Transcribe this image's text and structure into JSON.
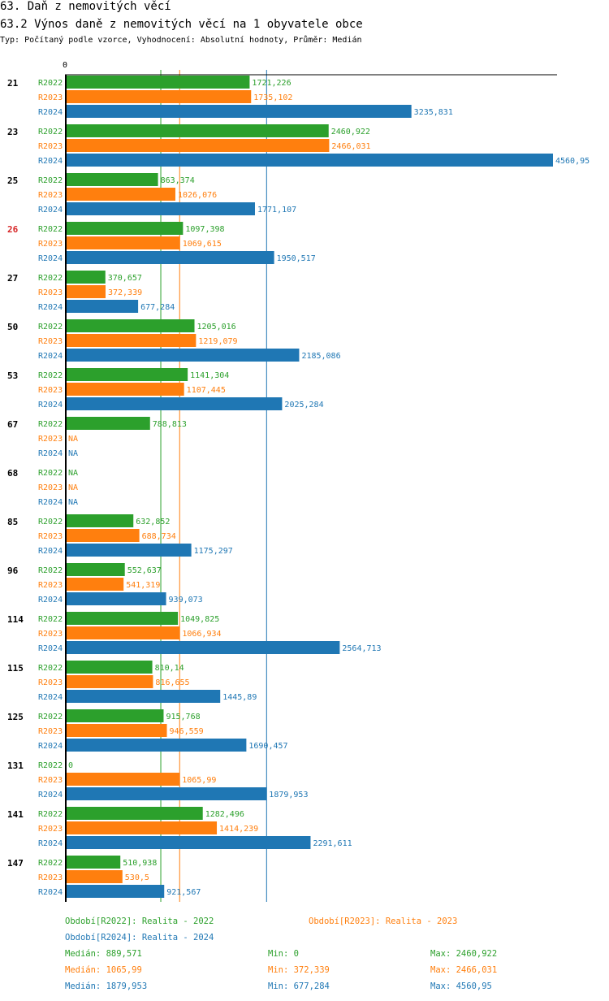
{
  "header": {
    "title": "63. Daň z nemovitých věcí",
    "subtitle": "63.2 Výnos daně z nemovitých věcí na 1 obyvatele obce",
    "meta": "Typ: Počítaný podle vzorce, Vyhodnocení: Absolutní hodnoty, Průměr: Medián"
  },
  "colors": {
    "R2022": "#2ca02c",
    "R2023": "#ff7f0e",
    "R2024": "#1f77b4",
    "highlight": "#d62728"
  },
  "chart_data": {
    "type": "bar",
    "orientation": "horizontal",
    "x_tick_label": "0",
    "xlim": [
      0,
      4560.95
    ],
    "series_names": [
      "R2022",
      "R2023",
      "R2024"
    ],
    "highlighted_group": "26",
    "groups": [
      {
        "id": "21",
        "values": [
          "1721,226",
          "1735,102",
          "3235,831"
        ]
      },
      {
        "id": "23",
        "values": [
          "2460,922",
          "2466,031",
          "4560,95"
        ]
      },
      {
        "id": "25",
        "values": [
          "863,374",
          "1026,076",
          "1771,107"
        ]
      },
      {
        "id": "26",
        "values": [
          "1097,398",
          "1069,615",
          "1950,517"
        ]
      },
      {
        "id": "27",
        "values": [
          "370,657",
          "372,339",
          "677,284"
        ]
      },
      {
        "id": "50",
        "values": [
          "1205,016",
          "1219,079",
          "2185,086"
        ]
      },
      {
        "id": "53",
        "values": [
          "1141,304",
          "1107,445",
          "2025,284"
        ]
      },
      {
        "id": "67",
        "values": [
          "788,813",
          "NA",
          "NA"
        ]
      },
      {
        "id": "68",
        "values": [
          "NA",
          "NA",
          "NA"
        ]
      },
      {
        "id": "85",
        "values": [
          "632,852",
          "688,734",
          "1175,297"
        ]
      },
      {
        "id": "96",
        "values": [
          "552,637",
          "541,319",
          "939,073"
        ]
      },
      {
        "id": "114",
        "values": [
          "1049,825",
          "1066,934",
          "2564,713"
        ]
      },
      {
        "id": "115",
        "values": [
          "810,14",
          "816,655",
          "1445,89"
        ]
      },
      {
        "id": "125",
        "values": [
          "915,768",
          "946,559",
          "1690,457"
        ]
      },
      {
        "id": "131",
        "values": [
          "0",
          "1065,99",
          "1879,953"
        ]
      },
      {
        "id": "141",
        "values": [
          "1282,496",
          "1414,239",
          "2291,611"
        ]
      },
      {
        "id": "147",
        "values": [
          "510,938",
          "530,5",
          "921,567"
        ]
      }
    ],
    "medians": [
      889.571,
      1065.99,
      1879.953
    ]
  },
  "legend": {
    "r2022": "Období[R2022]: Realita - 2022",
    "r2023": "Období[R2023]: Realita - 2023",
    "r2024": "Období[R2024]: Realita - 2024"
  },
  "stats": [
    {
      "median": "Medián: 889,571",
      "min": "Min: 0",
      "max": "Max: 2460,922"
    },
    {
      "median": "Medián: 1065,99",
      "min": "Min: 372,339",
      "max": "Max: 2466,031"
    },
    {
      "median": "Medián: 1879,953",
      "min": "Min: 677,284",
      "max": "Max: 4560,95"
    }
  ]
}
